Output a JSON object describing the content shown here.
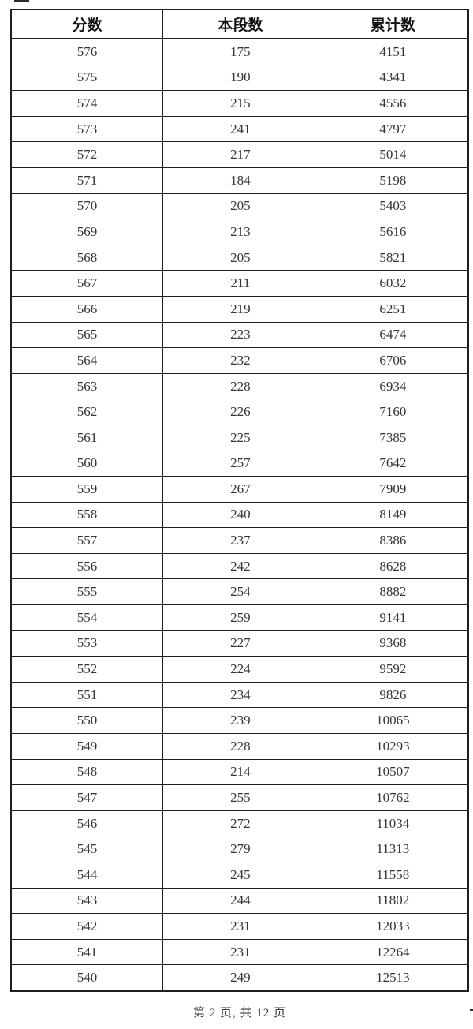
{
  "table": {
    "headers": [
      "分数",
      "本段数",
      "累计数"
    ],
    "rows": [
      [
        576,
        175,
        4151
      ],
      [
        575,
        190,
        4341
      ],
      [
        574,
        215,
        4556
      ],
      [
        573,
        241,
        4797
      ],
      [
        572,
        217,
        5014
      ],
      [
        571,
        184,
        5198
      ],
      [
        570,
        205,
        5403
      ],
      [
        569,
        213,
        5616
      ],
      [
        568,
        205,
        5821
      ],
      [
        567,
        211,
        6032
      ],
      [
        566,
        219,
        6251
      ],
      [
        565,
        223,
        6474
      ],
      [
        564,
        232,
        6706
      ],
      [
        563,
        228,
        6934
      ],
      [
        562,
        226,
        7160
      ],
      [
        561,
        225,
        7385
      ],
      [
        560,
        257,
        7642
      ],
      [
        559,
        267,
        7909
      ],
      [
        558,
        240,
        8149
      ],
      [
        557,
        237,
        8386
      ],
      [
        556,
        242,
        8628
      ],
      [
        555,
        254,
        8882
      ],
      [
        554,
        259,
        9141
      ],
      [
        553,
        227,
        9368
      ],
      [
        552,
        224,
        9592
      ],
      [
        551,
        234,
        9826
      ],
      [
        550,
        239,
        10065
      ],
      [
        549,
        228,
        10293
      ],
      [
        548,
        214,
        10507
      ],
      [
        547,
        255,
        10762
      ],
      [
        546,
        272,
        11034
      ],
      [
        545,
        279,
        11313
      ],
      [
        544,
        245,
        11558
      ],
      [
        543,
        244,
        11802
      ],
      [
        542,
        231,
        12033
      ],
      [
        541,
        231,
        12264
      ],
      [
        540,
        249,
        12513
      ]
    ]
  },
  "footer": {
    "text": "第 2 页, 共 12 页"
  },
  "colors": {
    "border": "#1f1f1f",
    "cell_text": "#34343c",
    "header_text": "#111111",
    "background": "#ffffff"
  }
}
